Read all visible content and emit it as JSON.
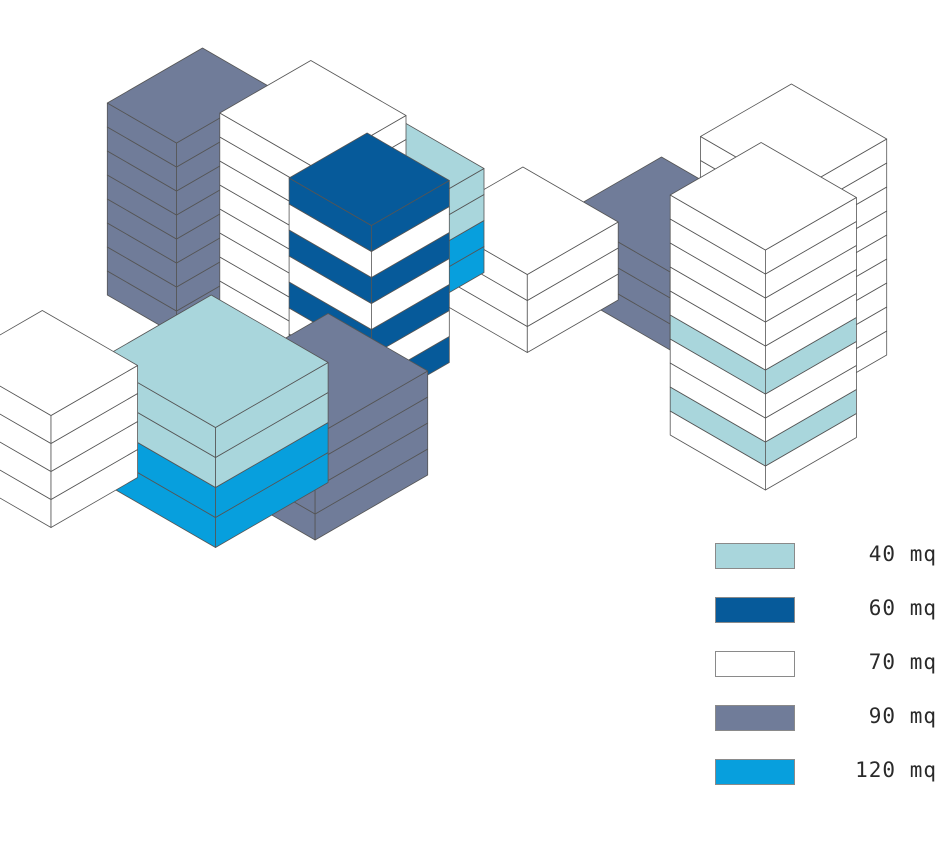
{
  "colors": {
    "40": "#a9d6dc",
    "60": "#065a9a",
    "70": "#ffffff",
    "90": "#707c99",
    "120": "#079fdd",
    "stroke": "#555555"
  },
  "legend": [
    {
      "key": "40",
      "label": "40 mq"
    },
    {
      "key": "60",
      "label": "60 mq"
    },
    {
      "key": "70",
      "label": "70 mq"
    },
    {
      "key": "90",
      "label": "90 mq"
    },
    {
      "key": "120",
      "label": "120 mq"
    }
  ]
}
